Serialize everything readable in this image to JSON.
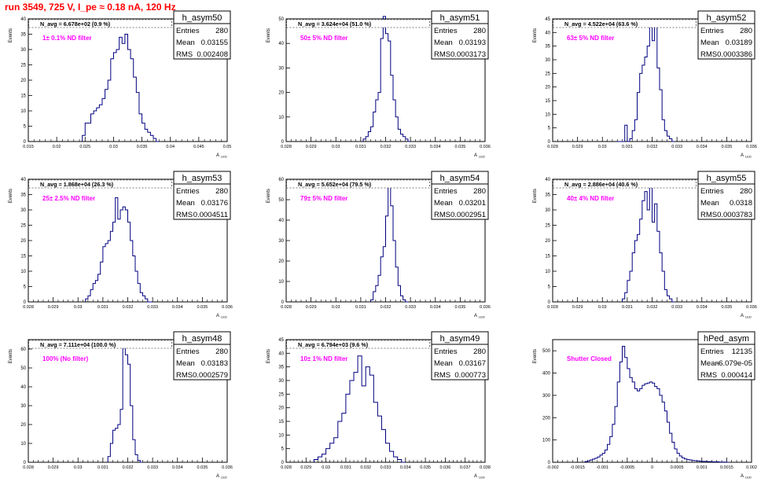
{
  "title": "run 3549,   725 V, I_pe ≈ 0.18 nA, 120 Hz",
  "colors": {
    "hist": "#000080",
    "title": "#ff0000",
    "annotation": "#ff00ff",
    "frame": "#000000"
  },
  "chart_data": [
    {
      "type": "bar",
      "name": "h_asym50",
      "navg": "N_avg = 6.678e+02 (0.9 %)",
      "annotation": "1± 0.1% ND filter",
      "stats": [
        [
          "Entries",
          "280"
        ],
        [
          "Mean",
          "0.03155"
        ],
        [
          "RMS",
          "0.002408"
        ]
      ],
      "xlim": [
        0.015,
        0.05
      ],
      "ylim": [
        0,
        40
      ],
      "xticks": [
        "0.015",
        "0.02",
        "0.025",
        "0.03",
        "0.035",
        "0.04",
        "0.045",
        "0.05"
      ],
      "yticks": [
        0,
        5,
        10,
        15,
        20,
        25,
        30,
        35,
        40
      ],
      "xlabel": "A_LED",
      "ylabel": "Events",
      "bin_width": 0.0005,
      "x": [
        0.0245,
        0.025,
        0.0255,
        0.026,
        0.0265,
        0.027,
        0.0275,
        0.028,
        0.0285,
        0.029,
        0.0295,
        0.03,
        0.0305,
        0.031,
        0.0315,
        0.032,
        0.0325,
        0.033,
        0.0335,
        0.034,
        0.0345,
        0.035,
        0.0355,
        0.036,
        0.0365,
        0.037,
        0.0375
      ],
      "values": [
        2,
        6,
        6,
        9,
        10,
        11,
        12,
        14,
        17,
        20,
        27,
        29,
        30,
        34,
        32,
        35,
        30,
        27,
        21,
        16,
        9,
        6,
        4,
        3,
        2,
        1,
        0
      ]
    },
    {
      "type": "bar",
      "name": "h_asym51",
      "navg": "N_avg = 3.624e+04 (51.0 %)",
      "annotation": "50± 5% ND filter",
      "stats": [
        [
          "Entries",
          "280"
        ],
        [
          "Mean",
          "0.03193"
        ],
        [
          "RMS",
          "0.0003173"
        ]
      ],
      "xlim": [
        0.028,
        0.036
      ],
      "ylim": [
        0,
        50
      ],
      "xticks": [
        "0.028",
        "0.029",
        "0.03",
        "0.031",
        "0.032",
        "0.033",
        "0.034",
        "0.035",
        "0.036"
      ],
      "yticks": [
        0,
        10,
        20,
        30,
        40,
        50
      ],
      "xlabel": "A_LED",
      "ylabel": "Events",
      "bin_width": 0.0001,
      "x": [
        0.0311,
        0.0312,
        0.0313,
        0.0314,
        0.0315,
        0.0316,
        0.0317,
        0.0318,
        0.0319,
        0.032,
        0.0321,
        0.0322,
        0.0323,
        0.0324,
        0.0325,
        0.0326,
        0.0327,
        0.0328,
        0.0329
      ],
      "values": [
        1,
        2,
        4,
        6,
        12,
        17,
        20,
        42,
        51,
        44,
        41,
        27,
        17,
        10,
        5,
        3,
        2,
        1,
        0
      ]
    },
    {
      "type": "bar",
      "name": "h_asym52",
      "navg": "N_avg = 4.522e+04 (63.6 %)",
      "annotation": "63± 5% ND filter",
      "stats": [
        [
          "Entries",
          "280"
        ],
        [
          "Mean",
          "0.03189"
        ],
        [
          "RMS",
          "0.0003386"
        ]
      ],
      "xlim": [
        0.028,
        0.036
      ],
      "ylim": [
        0,
        45
      ],
      "xticks": [
        "0.028",
        "0.029",
        "0.03",
        "0.031",
        "0.032",
        "0.033",
        "0.034",
        "0.035",
        "0.036"
      ],
      "yticks": [
        0,
        5,
        10,
        15,
        20,
        25,
        30,
        35,
        40,
        45
      ],
      "xlabel": "A_LED",
      "ylabel": "Events",
      "bin_width": 0.0001,
      "x": [
        0.0306,
        0.0307,
        0.0308,
        0.0309,
        0.031,
        0.0311,
        0.0312,
        0.0313,
        0.0314,
        0.0315,
        0.0316,
        0.0317,
        0.0318,
        0.0319,
        0.032,
        0.0321,
        0.0322,
        0.0323,
        0.0324,
        0.0325,
        0.0326,
        0.0327,
        0.0328
      ],
      "values": [
        0,
        0,
        0,
        6,
        0,
        1,
        4,
        8,
        18,
        25,
        28,
        31,
        35,
        43,
        37,
        44,
        27,
        19,
        8,
        4,
        2,
        1,
        0
      ]
    },
    {
      "type": "bar",
      "name": "h_asym53",
      "navg": "N_avg = 1.868e+04 (26.3 %)",
      "annotation": "25± 2.5% ND filter",
      "stats": [
        [
          "Entries",
          "280"
        ],
        [
          "Mean",
          "0.03176"
        ],
        [
          "RMS",
          "0.0004511"
        ]
      ],
      "xlim": [
        0.028,
        0.036
      ],
      "ylim": [
        0,
        40
      ],
      "xticks": [
        "0.028",
        "0.029",
        "0.03",
        "0.031",
        "0.032",
        "0.033",
        "0.034",
        "0.035",
        "0.036"
      ],
      "yticks": [
        0,
        5,
        10,
        15,
        20,
        25,
        30,
        35,
        40
      ],
      "xlabel": "A_LED",
      "ylabel": "Events",
      "bin_width": 0.0001,
      "x": [
        0.0303,
        0.0304,
        0.0305,
        0.0306,
        0.0307,
        0.0308,
        0.0309,
        0.031,
        0.0311,
        0.0312,
        0.0313,
        0.0314,
        0.0315,
        0.0316,
        0.0317,
        0.0318,
        0.0319,
        0.032,
        0.0321,
        0.0322,
        0.0323,
        0.0324,
        0.0325,
        0.0326,
        0.0327,
        0.0328,
        0.0329
      ],
      "values": [
        1,
        2,
        4,
        6,
        7,
        9,
        13,
        18,
        19,
        20,
        23,
        26,
        34,
        27,
        30,
        31,
        30,
        26,
        20,
        15,
        10,
        6,
        3,
        2,
        1,
        0,
        0
      ]
    },
    {
      "type": "bar",
      "name": "h_asym54",
      "navg": "N_avg = 5.652e+04 (79.5 %)",
      "annotation": "79± 5% ND filter",
      "stats": [
        [
          "Entries",
          "280"
        ],
        [
          "Mean",
          "0.03201"
        ],
        [
          "RMS",
          "0.0002951"
        ]
      ],
      "xlim": [
        0.028,
        0.036
      ],
      "ylim": [
        0,
        60
      ],
      "xticks": [
        "0.028",
        "0.029",
        "0.03",
        "0.031",
        "0.032",
        "0.033",
        "0.034",
        "0.035",
        "0.036"
      ],
      "yticks": [
        0,
        10,
        20,
        30,
        40,
        50,
        60
      ],
      "xlabel": "A_LED",
      "ylabel": "Events",
      "bin_width": 0.0001,
      "x": [
        0.0314,
        0.0315,
        0.0316,
        0.0317,
        0.0318,
        0.0319,
        0.032,
        0.0321,
        0.0322,
        0.0323,
        0.0324,
        0.0325,
        0.0326,
        0.0327,
        0.0328
      ],
      "values": [
        1,
        5,
        8,
        13,
        22,
        27,
        42,
        58,
        47,
        30,
        17,
        8,
        3,
        1,
        0
      ]
    },
    {
      "type": "bar",
      "name": "h_asym55",
      "navg": "N_avg = 2.886e+04 (40.6 %)",
      "annotation": "40± 4% ND filter",
      "stats": [
        [
          "Entries",
          "280"
        ],
        [
          "Mean",
          "0.0318"
        ],
        [
          "RMS",
          "0.0003783"
        ]
      ],
      "xlim": [
        0.028,
        0.036
      ],
      "ylim": [
        0,
        40
      ],
      "xticks": [
        "0.028",
        "0.029",
        "0.03",
        "0.031",
        "0.032",
        "0.033",
        "0.034",
        "0.035",
        "0.036"
      ],
      "yticks": [
        0,
        5,
        10,
        15,
        20,
        25,
        30,
        35,
        40
      ],
      "xlabel": "A_LED",
      "ylabel": "Events",
      "bin_width": 0.0001,
      "x": [
        0.0308,
        0.0309,
        0.031,
        0.0311,
        0.0312,
        0.0313,
        0.0314,
        0.0315,
        0.0316,
        0.0317,
        0.0318,
        0.0319,
        0.032,
        0.0321,
        0.0322,
        0.0323,
        0.0324,
        0.0325,
        0.0326,
        0.0327,
        0.0328
      ],
      "values": [
        1,
        3,
        7,
        10,
        16,
        20,
        22,
        27,
        33,
        36,
        30,
        39,
        26,
        32,
        23,
        16,
        10,
        4,
        2,
        1,
        0
      ]
    },
    {
      "type": "bar",
      "name": "h_asym48",
      "navg": "N_avg = 7.111e+04 (100.0 %)",
      "annotation": "100% (No filter)",
      "stats": [
        [
          "Entries",
          "280"
        ],
        [
          "Mean",
          "0.03183"
        ],
        [
          "RMS",
          "0.0002579"
        ]
      ],
      "xlim": [
        0.028,
        0.036
      ],
      "ylim": [
        0,
        65
      ],
      "xticks": [
        "0.028",
        "0.029",
        "0.03",
        "0.031",
        "0.032",
        "0.033",
        "0.034",
        "0.035",
        "0.036"
      ],
      "yticks": [
        0,
        10,
        20,
        30,
        40,
        50,
        60
      ],
      "xlabel": "A_LED",
      "ylabel": "Events",
      "bin_width": 0.0001,
      "x": [
        0.0312,
        0.0313,
        0.0314,
        0.0315,
        0.0316,
        0.0317,
        0.0318,
        0.0319,
        0.032,
        0.0321,
        0.0322,
        0.0323,
        0.0324,
        0.0325
      ],
      "values": [
        3,
        10,
        17,
        18,
        20,
        28,
        62,
        57,
        52,
        30,
        12,
        4,
        1,
        0
      ]
    },
    {
      "type": "bar",
      "name": "h_asym49",
      "navg": "N_avg = 6.794e+03 (9.6 %)",
      "annotation": "10± 1% ND filter",
      "stats": [
        [
          "Entries",
          "280"
        ],
        [
          "Mean",
          "0.03167"
        ],
        [
          "RMS",
          "0.000773"
        ]
      ],
      "xlim": [
        0.028,
        0.038
      ],
      "ylim": [
        0,
        45
      ],
      "xticks": [
        "0.028",
        "0.029",
        "0.03",
        "0.031",
        "0.032",
        "0.033",
        "0.034",
        "0.035",
        "0.036",
        "0.037",
        "0.038"
      ],
      "yticks": [
        0,
        5,
        10,
        15,
        20,
        25,
        30,
        35,
        40,
        45
      ],
      "xlabel": "A_LED",
      "ylabel": "Events",
      "bin_width": 0.0002,
      "x": [
        0.0294,
        0.0296,
        0.0298,
        0.03,
        0.0302,
        0.0304,
        0.0306,
        0.0308,
        0.031,
        0.0312,
        0.0314,
        0.0316,
        0.0318,
        0.032,
        0.0322,
        0.0324,
        0.0326,
        0.0328,
        0.033,
        0.0332,
        0.0334,
        0.0336,
        0.0338
      ],
      "values": [
        1,
        2,
        3,
        5,
        7,
        9,
        15,
        18,
        25,
        30,
        33,
        39,
        28,
        35,
        32,
        22,
        17,
        12,
        7,
        4,
        2,
        1,
        0
      ]
    },
    {
      "type": "bar",
      "name": "hPed_asym",
      "navg": "",
      "annotation": "Shutter Closed",
      "stats": [
        [
          "Entries",
          "12135"
        ],
        [
          "Mean",
          "-6.079e-05"
        ],
        [
          "RMS",
          "0.000414"
        ]
      ],
      "xlim": [
        -0.002,
        0.002
      ],
      "ylim": [
        0,
        550
      ],
      "xticks": [
        "-0.002",
        "-0.0015",
        "-0.001",
        "-0.0005",
        "0",
        "0.0005",
        "0.001",
        "0.0015",
        "0.002"
      ],
      "yticks": [
        0,
        100,
        200,
        300,
        400,
        500
      ],
      "xlabel": "A_LED",
      "ylabel": "Events",
      "bin_width": 5e-05,
      "x": [
        -0.00135,
        -0.0013,
        -0.00125,
        -0.0012,
        -0.00115,
        -0.0011,
        -0.00105,
        -0.001,
        -0.00095,
        -0.0009,
        -0.00085,
        -0.0008,
        -0.00075,
        -0.0007,
        -0.00065,
        -0.0006,
        -0.00055,
        -0.0005,
        -0.00045,
        -0.0004,
        -0.00035,
        -0.0003,
        -0.00025,
        -0.0002,
        -0.00015,
        -0.0001,
        -5e-05,
        0,
        5e-05,
        0.0001,
        0.00015,
        0.0002,
        0.00025,
        0.0003,
        0.00035,
        0.0004,
        0.00045,
        0.0005,
        0.00055,
        0.0006,
        0.00065,
        0.0007,
        0.00075,
        0.0008,
        0.00085,
        0.0009,
        0.00095,
        0.001,
        0.00105,
        0.0011,
        0.00115,
        0.0012,
        0.00125,
        0.0013,
        0.00135,
        0.0014,
        0.00145,
        0.0015
      ],
      "values": [
        3,
        6,
        10,
        14,
        18,
        24,
        32,
        40,
        55,
        80,
        115,
        170,
        250,
        360,
        450,
        520,
        470,
        420,
        380,
        360,
        330,
        320,
        330,
        345,
        352,
        355,
        360,
        355,
        340,
        330,
        300,
        270,
        230,
        180,
        130,
        90,
        60,
        40,
        28,
        20,
        15,
        12,
        10,
        8,
        7,
        6,
        5,
        4,
        4,
        3,
        3,
        2,
        2,
        2,
        1,
        1,
        1,
        0
      ]
    }
  ]
}
